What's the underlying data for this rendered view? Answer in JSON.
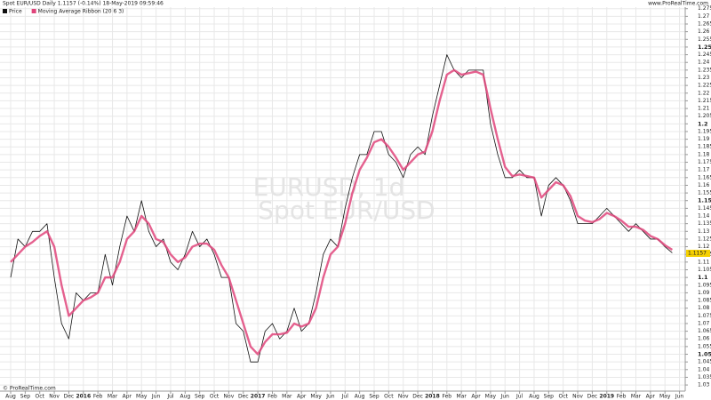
{
  "chart_data": {
    "type": "line",
    "title": "Spot EUR/USD Daily 1.1157 (-0.14%) 18-May-2019 09:59:46",
    "source_top": "www.ProRealTime.com",
    "source_bottom": "© ProRealTime.com",
    "watermark": [
      "EURUSD, 1d",
      "Spot EUR/USD"
    ],
    "last_price": 1.1157,
    "grid": true,
    "categories": [
      "Aug",
      null,
      "Sep",
      null,
      "Oct",
      null,
      "Nov",
      null,
      "Dec",
      null,
      "2016",
      null,
      "Feb",
      null,
      "Mar",
      null,
      "Apr",
      null,
      "May",
      null,
      "Jun",
      null,
      "Jul",
      null,
      "Aug",
      null,
      "Sep",
      null,
      "Oct",
      null,
      "Nov",
      null,
      "Dec",
      null,
      "2017",
      null,
      "Feb",
      null,
      "Mar",
      null,
      "Apr",
      null,
      "May",
      null,
      "Jun",
      null,
      "Jul",
      null,
      "Aug",
      null,
      "Sep",
      null,
      "Oct",
      null,
      "Nov",
      null,
      "Dec",
      null,
      "2018",
      null,
      "Feb",
      null,
      "Mar",
      null,
      "Apr",
      null,
      "May",
      null,
      "Jun",
      null,
      "Jul",
      null,
      "Aug",
      null,
      "Sep",
      null,
      "Oct",
      null,
      "Nov",
      null,
      "Dec",
      null,
      "2019",
      null,
      "Feb",
      null,
      "Mar",
      null,
      "Apr",
      null,
      "May",
      null,
      "Jun",
      null
    ],
    "series": [
      {
        "name": "Price",
        "color": "#111111",
        "values": [
          1.1,
          1.125,
          1.12,
          1.13,
          1.13,
          1.135,
          1.1,
          1.07,
          1.06,
          1.09,
          1.085,
          1.09,
          1.09,
          1.115,
          1.095,
          1.12,
          1.14,
          1.13,
          1.15,
          1.13,
          1.12,
          1.125,
          1.11,
          1.105,
          1.115,
          1.13,
          1.12,
          1.125,
          1.115,
          1.1,
          1.1,
          1.07,
          1.065,
          1.045,
          1.045,
          1.065,
          1.07,
          1.06,
          1.065,
          1.08,
          1.065,
          1.07,
          1.09,
          1.115,
          1.125,
          1.12,
          1.145,
          1.165,
          1.18,
          1.18,
          1.195,
          1.195,
          1.18,
          1.175,
          1.165,
          1.18,
          1.185,
          1.18,
          1.205,
          1.225,
          1.245,
          1.235,
          1.23,
          1.235,
          1.235,
          1.235,
          1.2,
          1.18,
          1.165,
          1.165,
          1.17,
          1.165,
          1.165,
          1.14,
          1.16,
          1.165,
          1.16,
          1.15,
          1.135,
          1.135,
          1.135,
          1.14,
          1.145,
          1.14,
          1.135,
          1.13,
          1.135,
          1.13,
          1.125,
          1.125,
          1.12,
          1.116,
          null,
          null
        ]
      },
      {
        "name": "Moving Average Ribbon (20 6 3)",
        "color": "#e0457b",
        "values": [
          1.11,
          1.115,
          1.12,
          1.123,
          1.127,
          1.13,
          1.12,
          1.095,
          1.075,
          1.08,
          1.085,
          1.087,
          1.09,
          1.1,
          1.1,
          1.11,
          1.125,
          1.13,
          1.14,
          1.135,
          1.125,
          1.123,
          1.115,
          1.11,
          1.113,
          1.12,
          1.122,
          1.122,
          1.118,
          1.108,
          1.1,
          1.085,
          1.07,
          1.055,
          1.05,
          1.058,
          1.063,
          1.063,
          1.064,
          1.07,
          1.068,
          1.07,
          1.08,
          1.1,
          1.115,
          1.12,
          1.135,
          1.155,
          1.17,
          1.178,
          1.188,
          1.19,
          1.185,
          1.178,
          1.17,
          1.175,
          1.18,
          1.182,
          1.195,
          1.215,
          1.232,
          1.235,
          1.232,
          1.233,
          1.234,
          1.232,
          1.21,
          1.19,
          1.172,
          1.166,
          1.167,
          1.166,
          1.165,
          1.152,
          1.157,
          1.162,
          1.16,
          1.153,
          1.14,
          1.137,
          1.136,
          1.138,
          1.142,
          1.14,
          1.137,
          1.133,
          1.133,
          1.131,
          1.127,
          1.125,
          1.121,
          1.118,
          null,
          null
        ]
      }
    ],
    "ylim": [
      1.026,
      1.276
    ],
    "yticks": [
      1.03,
      1.035,
      1.04,
      1.045,
      1.05,
      1.055,
      1.06,
      1.065,
      1.07,
      1.075,
      1.08,
      1.085,
      1.09,
      1.095,
      1.1,
      1.105,
      1.11,
      1.115,
      1.12,
      1.125,
      1.13,
      1.135,
      1.14,
      1.145,
      1.15,
      1.155,
      1.16,
      1.165,
      1.17,
      1.175,
      1.18,
      1.185,
      1.19,
      1.195,
      1.2,
      1.205,
      1.21,
      1.215,
      1.22,
      1.225,
      1.23,
      1.235,
      1.24,
      1.245,
      1.25,
      1.255,
      1.26,
      1.265,
      1.27,
      1.275
    ]
  }
}
